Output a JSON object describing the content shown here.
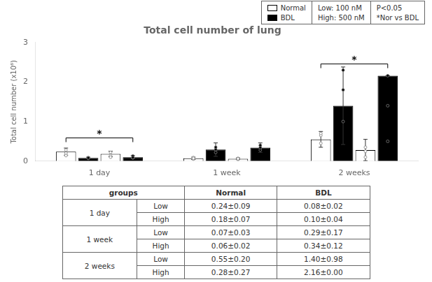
{
  "chart_data": {
    "type": "bar",
    "title": "Total cell number of lung",
    "ylabel": "Total cell number (x10⁶)",
    "categories": [
      "1 day",
      "1 week",
      "2 weeks"
    ],
    "series": [
      {
        "name": "Normal",
        "color": "#ffffff",
        "values": [
          0.24,
          0.07,
          0.55
        ],
        "errors": [
          0.09,
          0.03,
          0.2
        ],
        "points": [
          [
            0.2,
            0.28,
            0.14
          ],
          [
            0.05,
            0.09,
            0.07
          ],
          [
            0.45,
            0.65,
            0.7
          ]
        ]
      },
      {
        "name": "BDL",
        "color": "#000000",
        "values": [
          0.08,
          0.29,
          1.4
        ],
        "errors": [
          0.02,
          0.17,
          0.98
        ],
        "points": [
          [
            0.07,
            0.09,
            0.08
          ],
          [
            0.22,
            0.35,
            0.29
          ],
          [
            1.0,
            1.8,
            2.3
          ]
        ]
      },
      {
        "name": "Normal",
        "color": "#ffffff",
        "values": [
          0.18,
          0.06,
          0.28
        ],
        "errors": [
          0.07,
          0.02,
          0.27
        ],
        "points": [
          [
            0.14,
            0.22,
            0.1
          ],
          [
            0.04,
            0.07,
            0.06
          ],
          [
            0.1,
            0.35,
            0.25
          ]
        ]
      },
      {
        "name": "BDL",
        "color": "#000000",
        "values": [
          0.1,
          0.34,
          2.16
        ],
        "errors": [
          0.04,
          0.12,
          0.0
        ],
        "points": [
          [
            0.08,
            0.13,
            0.09
          ],
          [
            0.28,
            0.4,
            0.34
          ],
          [
            0.5,
            1.4,
            2.16
          ]
        ]
      }
    ],
    "ylim": [
      0,
      3
    ],
    "yticks": [
      0,
      1,
      2,
      3
    ],
    "grid": false,
    "legend": "upper right",
    "legend_notes": [
      [
        "Low: 100 nM",
        "High: 500 nM"
      ],
      [
        "P<0.05",
        "*Nor vs BDL"
      ]
    ],
    "annotations": [
      {
        "text": "*",
        "category": "1 day",
        "y": 0.48
      },
      {
        "text": "*",
        "category": "2 weeks",
        "y": 2.35
      }
    ],
    "table": {
      "header": [
        "groups",
        "Normal",
        "BDL"
      ],
      "rows": [
        [
          "1 day",
          "Low",
          "0.24±0.09",
          "0.08±0.02"
        ],
        [
          "1 day",
          "High",
          "0.18±0.07",
          "0.10±0.04"
        ],
        [
          "1 week",
          "Low",
          "0.07±0.03",
          "0.29±0.17"
        ],
        [
          "1 week",
          "High",
          "0.06±0.02",
          "0.34±0.12"
        ],
        [
          "2 weeks",
          "Low",
          "0.55±0.20",
          "1.40±0.98"
        ],
        [
          "2 weeks",
          "High",
          "0.28±0.27",
          "2.16±0.00"
        ]
      ]
    }
  }
}
